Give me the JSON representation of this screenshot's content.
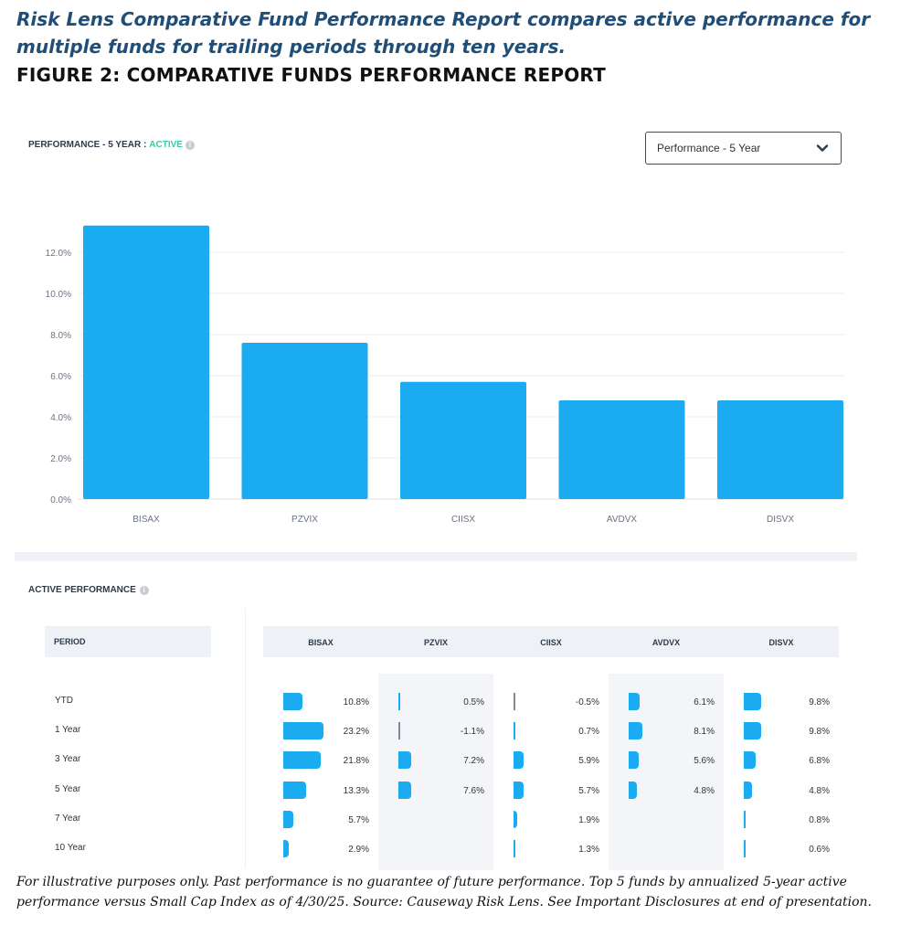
{
  "headline": "Risk Lens Comparative Fund Performance Report compares active performance for multiple funds for trailing periods through ten years.",
  "figure_title": "FIGURE 2: COMPARATIVE FUNDS PERFORMANCE REPORT",
  "chart_header": {
    "prefix": "PERFORMANCE - 5 YEAR : ",
    "active": "ACTIVE"
  },
  "dropdown": {
    "selected": "Performance - 5 Year",
    "icon": "chevron-down-icon"
  },
  "chart_data": {
    "type": "bar",
    "categories": [
      "BISAX",
      "PZVIX",
      "CIISX",
      "AVDVX",
      "DISVX"
    ],
    "values": [
      13.3,
      7.6,
      5.7,
      4.8,
      4.8
    ],
    "ylim": [
      0,
      13.5
    ],
    "yticks": [
      "0.0%",
      "2.0%",
      "4.0%",
      "6.0%",
      "8.0%",
      "10.0%",
      "12.0%"
    ],
    "ytick_values": [
      0,
      2,
      4,
      6,
      8,
      10,
      12
    ],
    "bar_color": "#1aabf0",
    "grid": true,
    "title": "",
    "xlabel": "",
    "ylabel": ""
  },
  "table": {
    "title": "ACTIVE PERFORMANCE",
    "period_header": "PERIOD",
    "columns": [
      "BISAX",
      "PZVIX",
      "CIISX",
      "AVDVX",
      "DISVX"
    ],
    "rows": [
      {
        "period": "YTD",
        "values": [
          10.8,
          0.5,
          -0.5,
          6.1,
          9.8
        ],
        "labels": [
          "10.8%",
          "0.5%",
          "-0.5%",
          "6.1%",
          "9.8%"
        ]
      },
      {
        "period": "1 Year",
        "values": [
          23.2,
          -1.1,
          0.7,
          8.1,
          9.8
        ],
        "labels": [
          "23.2%",
          "-1.1%",
          "0.7%",
          "8.1%",
          "9.8%"
        ]
      },
      {
        "period": "3 Year",
        "values": [
          21.8,
          7.2,
          5.9,
          5.6,
          6.8
        ],
        "labels": [
          "21.8%",
          "7.2%",
          "5.9%",
          "5.6%",
          "6.8%"
        ]
      },
      {
        "period": "5 Year",
        "values": [
          13.3,
          7.6,
          5.7,
          4.8,
          4.8
        ],
        "labels": [
          "13.3%",
          "7.6%",
          "5.7%",
          "4.8%",
          "4.8%"
        ]
      },
      {
        "period": "7 Year",
        "values": [
          5.7,
          null,
          1.9,
          null,
          0.8
        ],
        "labels": [
          "5.7%",
          "",
          "1.9%",
          "",
          "0.8%"
        ]
      },
      {
        "period": "10 Year",
        "values": [
          2.9,
          null,
          1.3,
          null,
          0.6
        ],
        "labels": [
          "2.9%",
          "",
          "1.3%",
          "",
          "0.6%"
        ]
      }
    ],
    "bar_color": "#1aabf0",
    "neg_color": "#7d8a99"
  },
  "footnote": "For illustrative purposes only. Past performance is no guarantee of future performance. Top 5 funds by annualized 5-year active performance versus Small Cap Index as of 4/30/25. Source: Causeway Risk Lens. See Important Disclosures at end of presentation."
}
